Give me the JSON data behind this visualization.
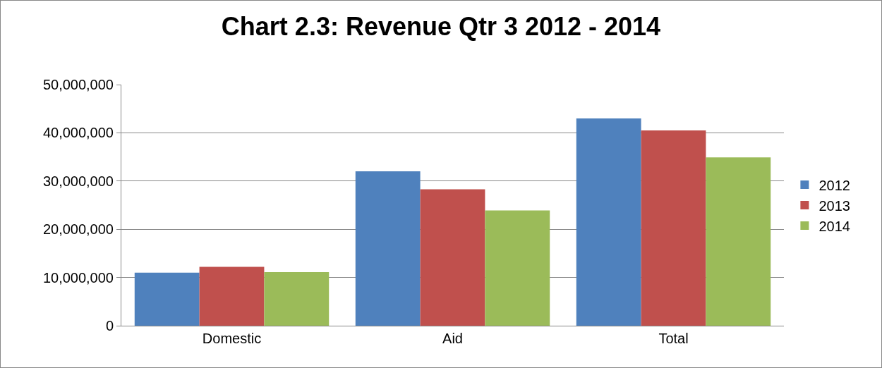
{
  "chart_data": {
    "type": "bar",
    "title": "Chart 2.3: Revenue Qtr 3 2012 - 2014",
    "categories": [
      "Domestic",
      "Aid",
      "Total"
    ],
    "series": [
      {
        "name": "2012",
        "color": "#4f81bd",
        "values": [
          11000000,
          32000000,
          43000000
        ]
      },
      {
        "name": "2013",
        "color": "#c0504d",
        "values": [
          12200000,
          28300000,
          40500000
        ]
      },
      {
        "name": "2014",
        "color": "#9bbb59",
        "values": [
          11100000,
          23900000,
          34900000
        ]
      }
    ],
    "ylim": [
      0,
      50000000
    ],
    "yticks": [
      {
        "value": 0,
        "label": "0"
      },
      {
        "value": 10000000,
        "label": "10,000,000"
      },
      {
        "value": 20000000,
        "label": "20,000,000"
      },
      {
        "value": 30000000,
        "label": "30,000,000"
      },
      {
        "value": 40000000,
        "label": "40,000,000"
      },
      {
        "value": 50000000,
        "label": "50,000,000"
      }
    ],
    "grid": "y",
    "legend": "right"
  }
}
